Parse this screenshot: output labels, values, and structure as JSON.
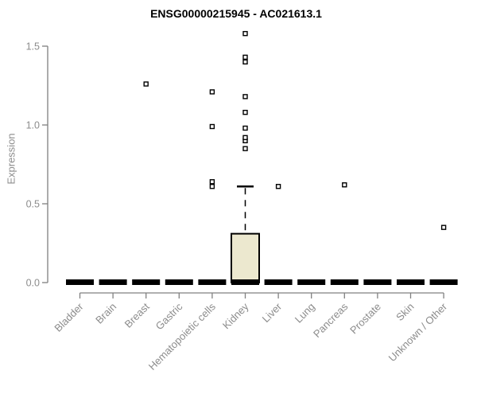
{
  "title": "ENSG00000215945 - AC021613.1",
  "chart_data": {
    "type": "boxplot",
    "title": "ENSG00000215945 - AC021613.1",
    "xlabel": "",
    "ylabel": "Expression",
    "ylim": [
      0,
      1.5
    ],
    "yticks": [
      "0.0",
      "0.5",
      "1.0",
      "1.5"
    ],
    "grid": false,
    "legend": "none",
    "categories": [
      "Bladder",
      "Brain",
      "Breast",
      "Gastric",
      "Hematopoietic cells",
      "Kidney",
      "Liver",
      "Lung",
      "Pancreas",
      "Prostate",
      "Skin",
      "Unknown / Other"
    ],
    "boxes": [
      {
        "category": "Bladder",
        "q1": 0,
        "median": 0,
        "q3": 0,
        "whisker_low": 0,
        "whisker_high": 0,
        "outliers": []
      },
      {
        "category": "Brain",
        "q1": 0,
        "median": 0,
        "q3": 0,
        "whisker_low": 0,
        "whisker_high": 0,
        "outliers": []
      },
      {
        "category": "Breast",
        "q1": 0,
        "median": 0,
        "q3": 0,
        "whisker_low": 0,
        "whisker_high": 0,
        "outliers": [
          1.26
        ]
      },
      {
        "category": "Gastric",
        "q1": 0,
        "median": 0,
        "q3": 0,
        "whisker_low": 0,
        "whisker_high": 0,
        "outliers": []
      },
      {
        "category": "Hematopoietic cells",
        "q1": 0,
        "median": 0,
        "q3": 0,
        "whisker_low": 0,
        "whisker_high": 0,
        "outliers": [
          0.61,
          0.64,
          0.99,
          1.21
        ]
      },
      {
        "category": "Kidney",
        "q1": 0,
        "median": 0,
        "q3": 0.31,
        "whisker_low": 0,
        "whisker_high": 0.61,
        "outliers": [
          0.85,
          0.9,
          0.92,
          0.98,
          1.08,
          1.18,
          1.4,
          1.43,
          1.58
        ]
      },
      {
        "category": "Liver",
        "q1": 0,
        "median": 0,
        "q3": 0,
        "whisker_low": 0,
        "whisker_high": 0,
        "outliers": [
          0.61
        ]
      },
      {
        "category": "Lung",
        "q1": 0,
        "median": 0,
        "q3": 0,
        "whisker_low": 0,
        "whisker_high": 0,
        "outliers": []
      },
      {
        "category": "Pancreas",
        "q1": 0,
        "median": 0,
        "q3": 0,
        "whisker_low": 0,
        "whisker_high": 0,
        "outliers": [
          0.62
        ]
      },
      {
        "category": "Prostate",
        "q1": 0,
        "median": 0,
        "q3": 0,
        "whisker_low": 0,
        "whisker_high": 0,
        "outliers": []
      },
      {
        "category": "Skin",
        "q1": 0,
        "median": 0,
        "q3": 0,
        "whisker_low": 0,
        "whisker_high": 0,
        "outliers": []
      },
      {
        "category": "Unknown / Other",
        "q1": 0,
        "median": 0,
        "q3": 0,
        "whisker_low": 0,
        "whisker_high": 0,
        "outliers": [
          0.35
        ]
      }
    ],
    "colors": {
      "box_fill": "#ece8cf",
      "box_stroke": "#000000",
      "median": "#000000",
      "axis_line": "#808080",
      "tick_text": "#8c8c8c",
      "title_text": "#000000",
      "background": "#ffffff"
    }
  }
}
